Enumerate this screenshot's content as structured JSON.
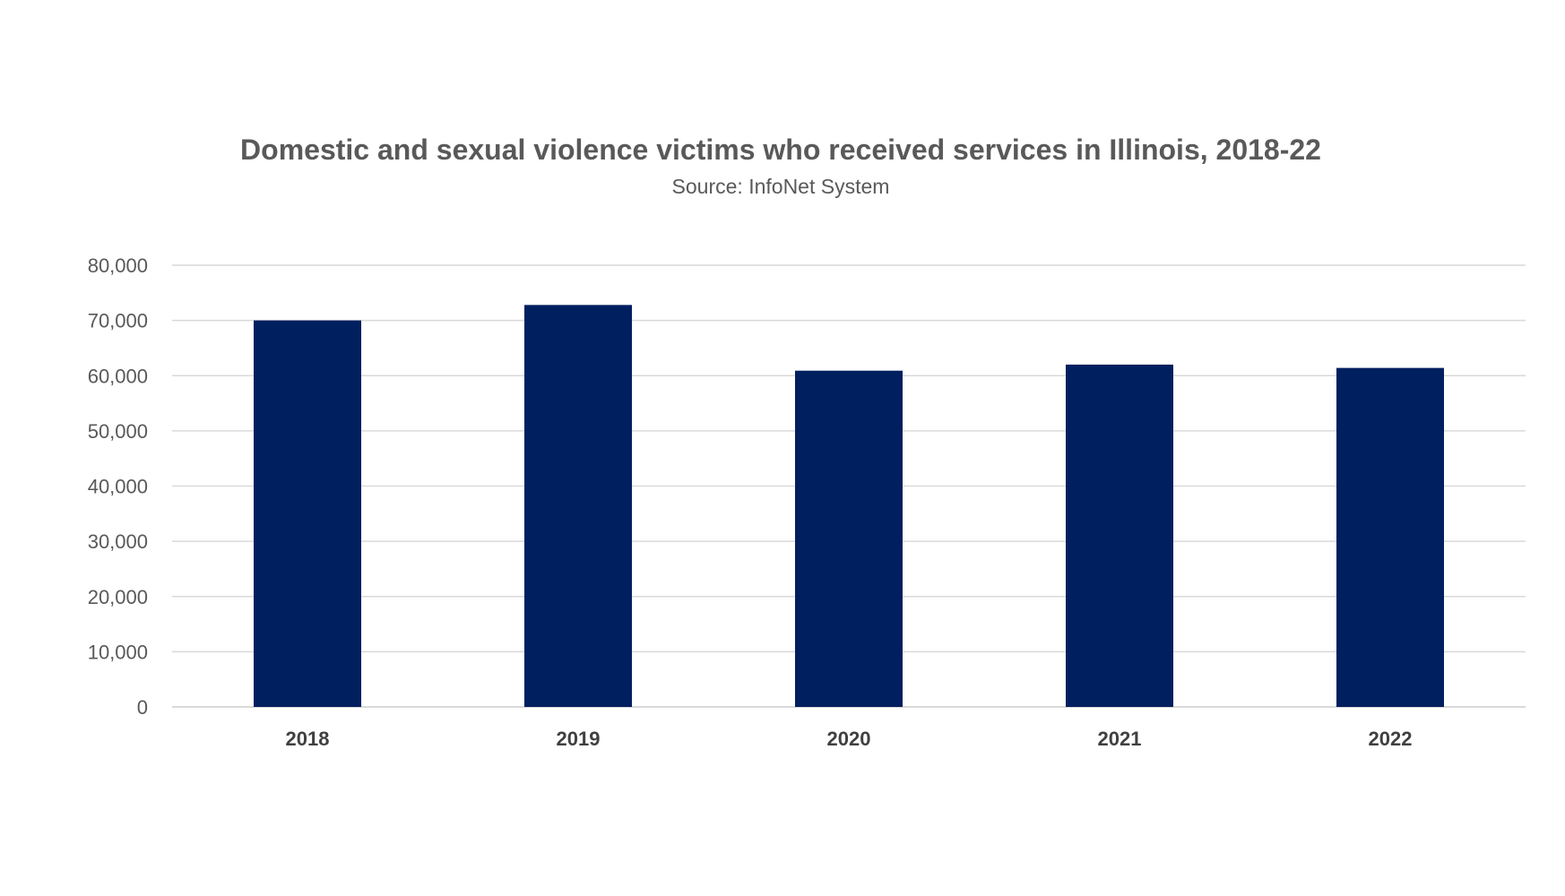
{
  "chart_data": {
    "type": "bar",
    "title": "Domestic and sexual violence victims who received services in Illinois, 2018-22",
    "subtitle": "Source: InfoNet System",
    "categories": [
      "2018",
      "2019",
      "2020",
      "2021",
      "2022"
    ],
    "values": [
      70000,
      72800,
      60900,
      62000,
      61400
    ],
    "ylim": [
      0,
      80000
    ],
    "yticks": [
      0,
      10000,
      20000,
      30000,
      40000,
      50000,
      60000,
      70000,
      80000
    ],
    "ytick_labels": [
      "0",
      "10,000",
      "20,000",
      "30,000",
      "40,000",
      "50,000",
      "60,000",
      "70,000",
      "80,000"
    ],
    "xlabel": "",
    "ylabel": "",
    "grid": true,
    "legend": false,
    "bar_color": "#001f5f"
  }
}
